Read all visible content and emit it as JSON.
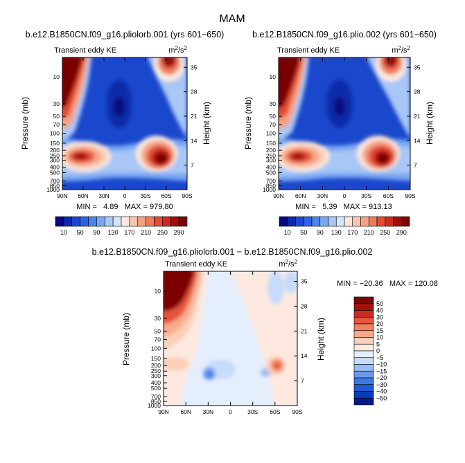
{
  "figure_title": "MAM",
  "colors": {
    "full_field_scale": [
      "#08087f",
      "#0a2aa8",
      "#1a48cc",
      "#2e64e0",
      "#4c84ec",
      "#78a6f2",
      "#a8c6f6",
      "#d6e6fa",
      "#fbe8dd",
      "#f9c7b1",
      "#f5a283",
      "#ef7a58",
      "#e44c34",
      "#cc2a1e",
      "#a00e0e",
      "#7a0606"
    ],
    "diff_scale": [
      "#001a8c",
      "#0a3ab8",
      "#1f5ad6",
      "#3a78e6",
      "#6a9aee",
      "#98bcf4",
      "#c6dcfa",
      "#e4eefc",
      "#fde9e0",
      "#fbcfb8",
      "#f8ab8c",
      "#f2805e",
      "#e6543a",
      "#cc2c1c",
      "#a41010",
      "#7c0606"
    ]
  },
  "chart_data": [
    {
      "type": "heatmap",
      "title": "b.e12.B1850CN.f09_g16.pliolorb.001 (yrs 601−650)",
      "subtitle_left": "Transient eddy KE",
      "units": "m²/s²",
      "ylabel": "Pressure (mb)",
      "ylabel_right": "Height (km)",
      "x_ticks": [
        "90N",
        "60N",
        "30N",
        "0",
        "30S",
        "60S",
        "90S"
      ],
      "y_ticks": [
        "10",
        "30",
        "50",
        "70",
        "100",
        "150",
        "200",
        "250",
        "300",
        "400",
        "500",
        "700",
        "850",
        "1000"
      ],
      "y_ticks_right": [
        "35",
        "28",
        "21",
        "14",
        "7"
      ],
      "stats_text": "MIN =   4.89   MAX = 979.80",
      "min": 4.89,
      "max": 979.8,
      "legend_labels": [
        "10",
        "50",
        "90",
        "130",
        "170",
        "210",
        "250",
        "290"
      ],
      "legend_levels": [
        10,
        30,
        50,
        70,
        90,
        110,
        130,
        150,
        170,
        190,
        210,
        230,
        250,
        270,
        290
      ]
    },
    {
      "type": "heatmap",
      "title": "b.e12.B1850CN.f09_g16.plio.002 (yrs 601−650)",
      "subtitle_left": "Transient eddy KE",
      "units": "m²/s²",
      "ylabel": "Pressure (mb)",
      "ylabel_right": "Height (km)",
      "x_ticks": [
        "90N",
        "60N",
        "30N",
        "0",
        "30S",
        "60S",
        "90S"
      ],
      "y_ticks": [
        "10",
        "30",
        "50",
        "70",
        "100",
        "150",
        "200",
        "250",
        "300",
        "400",
        "500",
        "700",
        "850",
        "1000"
      ],
      "y_ticks_right": [
        "35",
        "28",
        "21",
        "14",
        "7"
      ],
      "stats_text": "MIN =   5.39   MAX = 913.13",
      "min": 5.39,
      "max": 913.13,
      "legend_labels": [
        "10",
        "50",
        "90",
        "130",
        "170",
        "210",
        "250",
        "290"
      ],
      "legend_levels": [
        10,
        30,
        50,
        70,
        90,
        110,
        130,
        150,
        170,
        190,
        210,
        230,
        250,
        270,
        290
      ]
    },
    {
      "type": "heatmap",
      "title": "b.e12.B1850CN.f09_g16.pliolorb.001 − b.e12.B1850CN.f09_g16.plio.002",
      "subtitle_left": "Transient eddy KE",
      "units": "m²/s²",
      "ylabel": "Pressure (mb)",
      "ylabel_right": "Height (km)",
      "x_ticks": [
        "90N",
        "60N",
        "30N",
        "0",
        "30S",
        "60S",
        "90S"
      ],
      "y_ticks": [
        "10",
        "30",
        "50",
        "70",
        "100",
        "150",
        "200",
        "250",
        "300",
        "400",
        "500",
        "700",
        "850",
        "1000"
      ],
      "y_ticks_right": [
        "35",
        "28",
        "21",
        "14",
        "7"
      ],
      "stats_text": "MIN = −20.36   MAX = 120.08",
      "min": -20.36,
      "max": 120.08,
      "legend_labels": [
        "50",
        "40",
        "30",
        "20",
        "15",
        "10",
        "5",
        "0",
        "−5",
        "−10",
        "−15",
        "−20",
        "−30",
        "−40",
        "−50"
      ],
      "legend_levels": [
        50,
        40,
        30,
        20,
        15,
        10,
        5,
        0,
        -5,
        -10,
        -15,
        -20,
        -30,
        -40,
        -50
      ]
    }
  ]
}
